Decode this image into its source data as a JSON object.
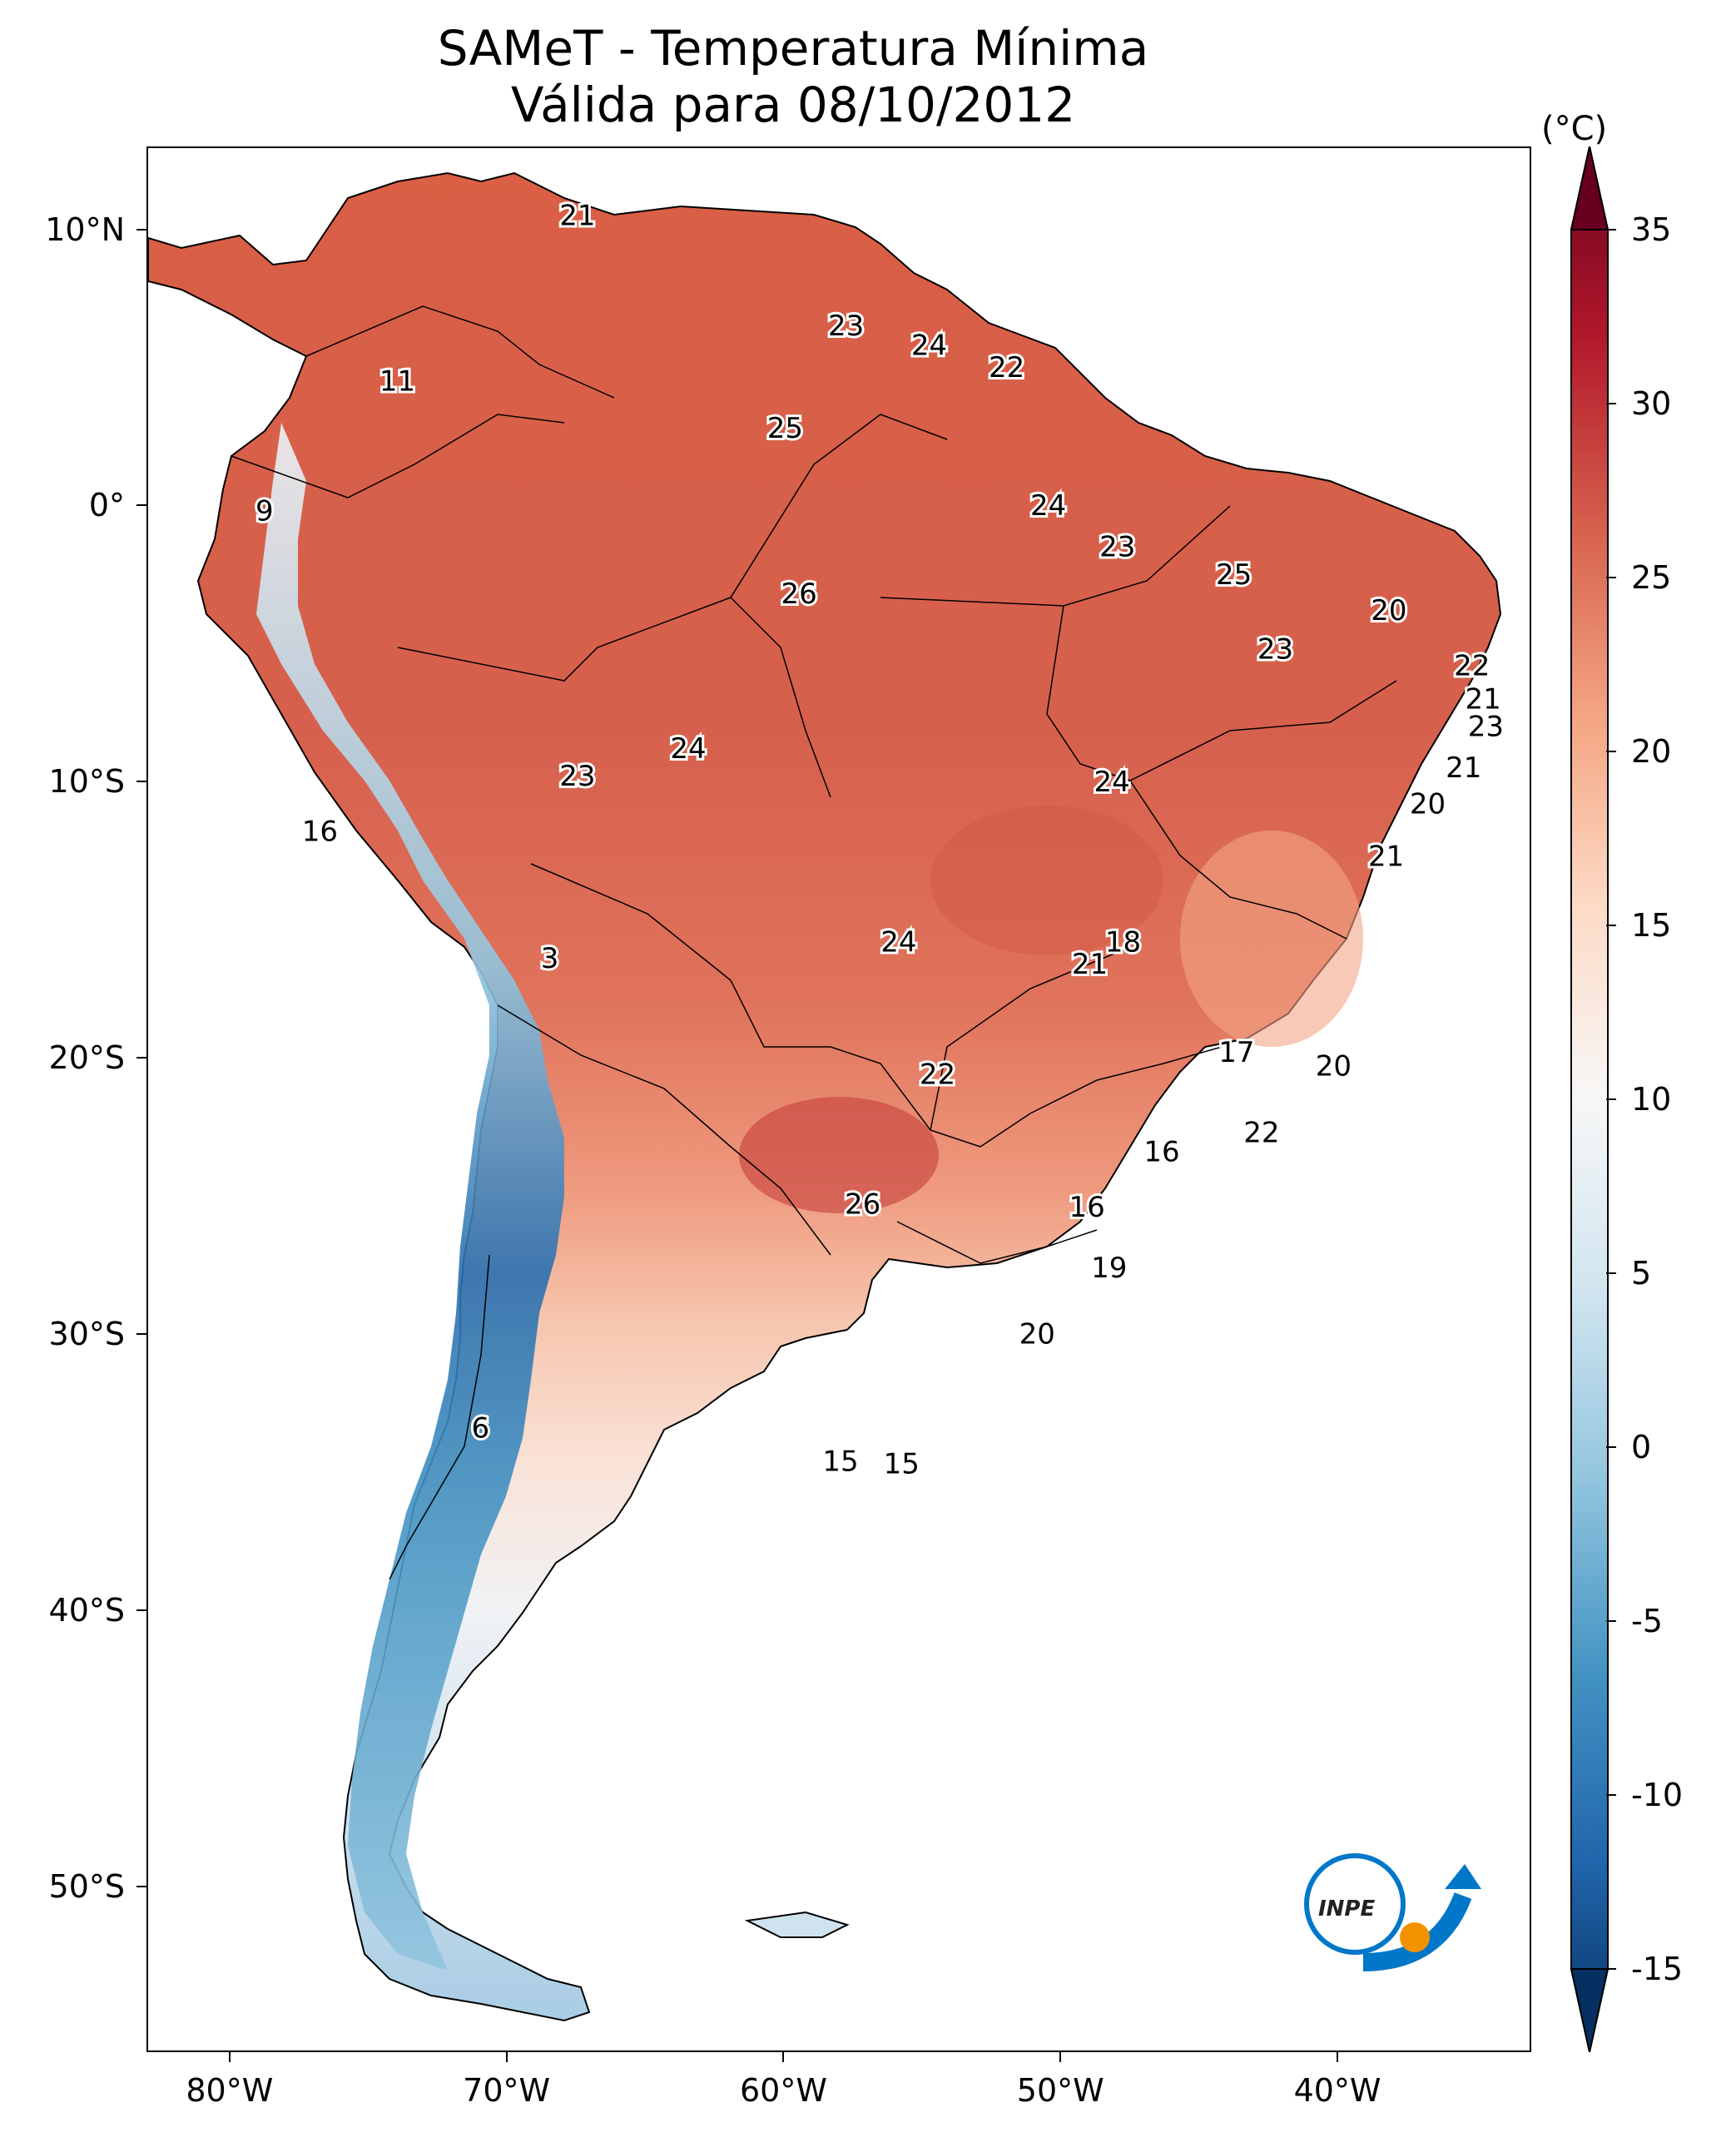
{
  "title": {
    "line1": "SAMeT - Temperatura Mínima",
    "line2": "Válida para 08/10/2012"
  },
  "axes": {
    "lat_labels": [
      "10°N",
      "0°",
      "10°S",
      "20°S",
      "30°S",
      "40°S",
      "50°S"
    ],
    "lat_values": [
      10,
      0,
      -10,
      -20,
      -30,
      -40,
      -50
    ],
    "lon_labels": [
      "80°W",
      "70°W",
      "60°W",
      "50°W",
      "40°W"
    ],
    "lon_values": [
      -80,
      -70,
      -60,
      -50,
      -40
    ],
    "lat_range": [
      -56,
      13
    ],
    "lon_range": [
      -83,
      -33
    ]
  },
  "colorbar": {
    "unit": "(°C)",
    "tick_labels": [
      "35",
      "30",
      "25",
      "20",
      "15",
      "10",
      "5",
      "0",
      "-5",
      "-10",
      "-15"
    ],
    "tick_values": [
      35,
      30,
      25,
      20,
      15,
      10,
      5,
      0,
      -5,
      -10,
      -15
    ],
    "range": [
      -15,
      35
    ],
    "colors": [
      "#053061",
      "#2166ac",
      "#4393c3",
      "#92c5de",
      "#d1e5f0",
      "#f7f7f7",
      "#fddbc7",
      "#f4a582",
      "#d6604d",
      "#b2182b",
      "#67001f"
    ]
  },
  "labels": [
    {
      "text": "21",
      "lon": -67.5,
      "lat": 10.5
    },
    {
      "text": "11",
      "lon": -74.0,
      "lat": 4.5
    },
    {
      "text": "23",
      "lon": -57.8,
      "lat": 6.5
    },
    {
      "text": "24",
      "lon": -54.8,
      "lat": 5.8
    },
    {
      "text": "22",
      "lon": -52.0,
      "lat": 5.0
    },
    {
      "text": "25",
      "lon": -60.0,
      "lat": 2.8
    },
    {
      "text": "9",
      "lon": -78.8,
      "lat": -0.2
    },
    {
      "text": "24",
      "lon": -50.5,
      "lat": 0.0
    },
    {
      "text": "23",
      "lon": -48.0,
      "lat": -1.5
    },
    {
      "text": "25",
      "lon": -43.8,
      "lat": -2.5
    },
    {
      "text": "26",
      "lon": -59.5,
      "lat": -3.2
    },
    {
      "text": "20",
      "lon": -38.2,
      "lat": -3.8
    },
    {
      "text": "23",
      "lon": -42.3,
      "lat": -5.2
    },
    {
      "text": "22",
      "lon": -35.2,
      "lat": -5.8
    },
    {
      "text": "21",
      "lon": -34.8,
      "lat": -7.0
    },
    {
      "text": "23",
      "lon": -34.7,
      "lat": -8.0
    },
    {
      "text": "24",
      "lon": -63.5,
      "lat": -8.8
    },
    {
      "text": "23",
      "lon": -67.5,
      "lat": -9.8
    },
    {
      "text": "24",
      "lon": -48.2,
      "lat": -10.0
    },
    {
      "text": "21",
      "lon": -35.5,
      "lat": -9.5
    },
    {
      "text": "20",
      "lon": -36.8,
      "lat": -10.8
    },
    {
      "text": "16",
      "lon": -76.8,
      "lat": -11.8
    },
    {
      "text": "21",
      "lon": -38.3,
      "lat": -12.7
    },
    {
      "text": "18",
      "lon": -47.8,
      "lat": -15.8
    },
    {
      "text": "24",
      "lon": -55.9,
      "lat": -15.8
    },
    {
      "text": "21",
      "lon": -49.0,
      "lat": -16.6
    },
    {
      "text": "3",
      "lon": -68.5,
      "lat": -16.4
    },
    {
      "text": "17",
      "lon": -43.7,
      "lat": -19.8
    },
    {
      "text": "20",
      "lon": -40.2,
      "lat": -20.3
    },
    {
      "text": "22",
      "lon": -54.5,
      "lat": -20.6
    },
    {
      "text": "22",
      "lon": -42.8,
      "lat": -22.7
    },
    {
      "text": "16",
      "lon": -46.4,
      "lat": -23.4
    },
    {
      "text": "26",
      "lon": -57.2,
      "lat": -25.3
    },
    {
      "text": "16",
      "lon": -49.1,
      "lat": -25.4
    },
    {
      "text": "19",
      "lon": -48.3,
      "lat": -27.6
    },
    {
      "text": "20",
      "lon": -50.9,
      "lat": -30.0
    },
    {
      "text": "6",
      "lon": -71.0,
      "lat": -33.4
    },
    {
      "text": "15",
      "lon": -58.0,
      "lat": -34.6
    },
    {
      "text": "15",
      "lon": -55.8,
      "lat": -34.7
    }
  ],
  "logo": {
    "text": "INPE",
    "colors": [
      "#0077c8",
      "#f39200"
    ]
  }
}
